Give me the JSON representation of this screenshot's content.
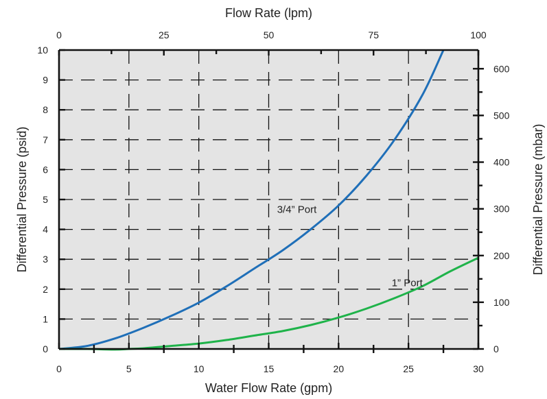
{
  "colors": {
    "plot_background": "#e4e4e4",
    "axis": "#111111",
    "grid": "#111111",
    "series_3_4_port": "#1f6fb8",
    "series_1_port": "#1fb34a"
  },
  "chart_data": {
    "type": "line",
    "grid": "dashed",
    "axes": {
      "bottom": {
        "label": "Water Flow Rate (gpm)",
        "range": [
          0,
          30
        ],
        "ticks": [
          0,
          5,
          10,
          15,
          20,
          25,
          30
        ],
        "tick_labels": [
          "0",
          "5",
          "10",
          "15",
          "20",
          "25",
          "30"
        ]
      },
      "top": {
        "label": "Flow Rate (lpm)",
        "range": [
          0,
          100
        ],
        "ticks": [
          0,
          25,
          50,
          75,
          100
        ],
        "tick_labels": [
          "0",
          "25",
          "50",
          "75",
          "100"
        ]
      },
      "left": {
        "label": "Differential Pressure (psid)",
        "range": [
          0,
          10
        ],
        "ticks": [
          0,
          1,
          2,
          3,
          4,
          5,
          6,
          7,
          8,
          9,
          10
        ],
        "tick_labels": [
          "0",
          "1",
          "2",
          "3",
          "4",
          "5",
          "6",
          "7",
          "8",
          "9",
          "10"
        ]
      },
      "right": {
        "label": "Differential Pressure (mbar)",
        "range": [
          0,
          640
        ],
        "ticks": [
          0,
          100,
          200,
          300,
          400,
          500,
          600
        ],
        "tick_labels": [
          "0",
          "100",
          "200",
          "300",
          "400",
          "500",
          "600"
        ]
      }
    },
    "series": [
      {
        "name": "3/4” Port",
        "color": "#1f6fb8",
        "x": [
          0,
          2,
          4,
          6,
          8,
          10,
          12,
          14,
          16,
          18,
          20,
          22,
          24,
          26,
          27.5
        ],
        "y": [
          0,
          0.1,
          0.35,
          0.7,
          1.1,
          1.55,
          2.1,
          2.7,
          3.3,
          4.0,
          4.8,
          5.8,
          7.0,
          8.5,
          10.0
        ]
      },
      {
        "name": "1” Port",
        "color": "#1fb34a",
        "x": [
          0,
          2,
          4,
          5,
          6,
          8,
          10,
          12,
          14,
          16,
          18,
          20,
          22,
          24,
          26,
          28,
          30
        ],
        "y": [
          0,
          0,
          -0.02,
          0,
          0.02,
          0.1,
          0.18,
          0.3,
          0.45,
          0.6,
          0.8,
          1.05,
          1.35,
          1.7,
          2.1,
          2.6,
          3.05
        ]
      }
    ]
  }
}
